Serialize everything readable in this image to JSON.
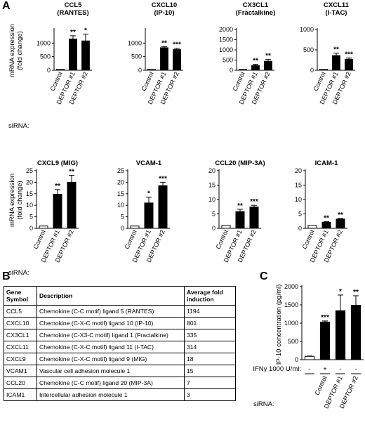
{
  "panel_labels": [
    "A",
    "B",
    "C"
  ],
  "row_label_y": "mRNA expression\n(fold change)",
  "sirna_label": "siRNA:",
  "panel_c": {
    "ylabel": "IP-10 concentration (pg/ml)",
    "ifn_label": "IFNγ 1000 U/ml:",
    "ifn_values": [
      "-",
      "+",
      "-",
      "-"
    ],
    "sirna_label": "siRNA:"
  },
  "table": {
    "headers": [
      "Gene Symbol",
      "Description",
      "Average fold induction"
    ],
    "rows": [
      [
        "CCL5",
        "Chemokine (C-C motif) ligand 5 (RANTES)",
        "1194"
      ],
      [
        "CXCL10",
        "Chemokine (C-X-C motif) ligand 10 (IP-10)",
        "801"
      ],
      [
        "CX3CL1",
        "Chemokine (C-X3-C motif) ligand 1 (Fractalkine)",
        "335"
      ],
      [
        "CXCL11",
        "Chemokine (C-X-C motif) ligand 11 (I-TAC)",
        "314"
      ],
      [
        "CXCL9",
        "Chemokine (C-X-C motif) ligand 9 (MIG)",
        "18"
      ],
      [
        "VCAM1",
        "Vascular cell adhesion molecule 1",
        "15"
      ],
      [
        "CCL20",
        "Chemokine (C-C motif) ligand 20 (MIP-3A)",
        "7"
      ],
      [
        "ICAM1",
        "Intercellular adhesion molecule 1",
        "3"
      ]
    ]
  },
  "chart_data": [
    {
      "type": "bar",
      "title": "CCL5\n(RANTES)",
      "categories": [
        "Control",
        "DEPTOR #1",
        "DEPTOR #2"
      ],
      "values": [
        1,
        1150,
        1080
      ],
      "errors": [
        0,
        120,
        250
      ],
      "sig": [
        "",
        "**",
        "*"
      ],
      "ylim": [
        0,
        1500
      ],
      "yticks": [
        0,
        500,
        1000
      ]
    },
    {
      "type": "bar",
      "title": "CXCL10\n(IP-10)",
      "categories": [
        "Control",
        "DEPTOR #1",
        "DEPTOR #2"
      ],
      "values": [
        1,
        830,
        760
      ],
      "errors": [
        0,
        40,
        50
      ],
      "sig": [
        "",
        "**",
        "***"
      ],
      "ylim": [
        0,
        1500
      ],
      "yticks": [
        0,
        500,
        1000
      ]
    },
    {
      "type": "bar",
      "title": "CX3CL1\n(Fractalkine)",
      "categories": [
        "Control",
        "DEPTOR #1",
        "DEPTOR #2"
      ],
      "values": [
        1,
        230,
        440
      ],
      "errors": [
        0,
        60,
        90
      ],
      "sig": [
        "",
        "**",
        "**"
      ],
      "ylim": [
        0,
        2000
      ],
      "yticks": [
        0,
        500,
        1000,
        1500,
        2000
      ]
    },
    {
      "type": "bar",
      "title": "CXCL11\n(I-TAC)",
      "categories": [
        "Control",
        "DEPTOR #1",
        "DEPTOR #2"
      ],
      "values": [
        1,
        360,
        270
      ],
      "errors": [
        0,
        60,
        30
      ],
      "sig": [
        "",
        "**",
        "***"
      ],
      "ylim": [
        0,
        1000
      ],
      "yticks": [
        0,
        500,
        1000
      ]
    },
    {
      "type": "bar",
      "title": "CXCL9 (MIG)",
      "categories": [
        "Control",
        "DEPTOR #1",
        "DEPTOR #2"
      ],
      "values": [
        1,
        14.8,
        20
      ],
      "errors": [
        0,
        2,
        3
      ],
      "sig": [
        "",
        "**",
        "**"
      ],
      "ylim": [
        0,
        25
      ],
      "yticks": [
        0,
        5,
        10,
        15,
        20,
        25
      ]
    },
    {
      "type": "bar",
      "title": "VCAM-1",
      "categories": [
        "Control",
        "DEPTOR #1",
        "DEPTOR #2"
      ],
      "values": [
        1,
        11,
        18.5
      ],
      "errors": [
        0,
        2.5,
        1.5
      ],
      "sig": [
        "",
        "*",
        "***"
      ],
      "ylim": [
        0,
        25
      ],
      "yticks": [
        0,
        5,
        10,
        15,
        20,
        25
      ]
    },
    {
      "type": "bar",
      "title": "CCL20 (MIP-3A)",
      "categories": [
        "Control",
        "DEPTOR #1",
        "DEPTOR #2"
      ],
      "values": [
        1,
        5.8,
        7.4
      ],
      "errors": [
        0,
        0.8,
        0.6
      ],
      "sig": [
        "",
        "**",
        "***"
      ],
      "ylim": [
        0,
        20
      ],
      "yticks": [
        0,
        5,
        10,
        15,
        20
      ]
    },
    {
      "type": "bar",
      "title": "ICAM-1",
      "categories": [
        "Control",
        "DEPTOR #1",
        "DEPTOR #2"
      ],
      "values": [
        1,
        2.1,
        3.2
      ],
      "errors": [
        0,
        0.2,
        0.2
      ],
      "sig": [
        "",
        "**",
        "**"
      ],
      "ylim": [
        0,
        20
      ],
      "yticks": [
        0,
        5,
        10,
        15,
        20
      ]
    },
    {
      "type": "bar",
      "title": "",
      "categories": [
        "Control",
        "Control",
        "DEPTOR #1",
        "DEPTOR #2"
      ],
      "values": [
        90,
        1030,
        1340,
        1490
      ],
      "errors": [
        10,
        30,
        430,
        260
      ],
      "sig": [
        "",
        "***",
        "*",
        "**"
      ],
      "ylabel": "IP-10 concentration (pg/ml)",
      "ylim": [
        0,
        2000
      ],
      "yticks": [
        0,
        500,
        1000,
        1500,
        2000
      ]
    }
  ]
}
